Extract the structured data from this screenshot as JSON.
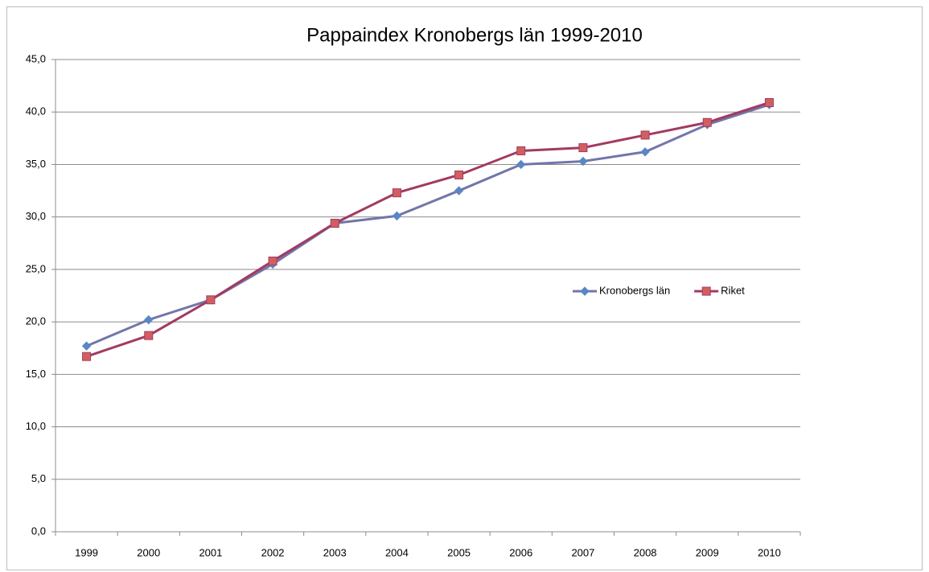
{
  "chart_data": {
    "type": "line",
    "title": "Pappaindex Kronobergs län 1999-2010",
    "categories": [
      "1999",
      "2000",
      "2001",
      "2002",
      "2003",
      "2004",
      "2005",
      "2006",
      "2007",
      "2008",
      "2009",
      "2010"
    ],
    "series": [
      {
        "name": "Kronobergs län",
        "color": "#7276a9",
        "marker_color": "#5b86c6",
        "marker": "diamond",
        "values": [
          17.7,
          20.2,
          22.1,
          25.5,
          29.4,
          30.1,
          32.5,
          35.0,
          35.3,
          36.2,
          38.8,
          40.7
        ]
      },
      {
        "name": "Riket",
        "color": "#a23a62",
        "marker_color": "#d25f5f",
        "marker": "square",
        "values": [
          16.7,
          18.7,
          22.1,
          25.8,
          29.4,
          32.3,
          34.0,
          36.3,
          36.6,
          37.8,
          39.0,
          40.9
        ]
      }
    ],
    "ylim": [
      0,
      45
    ],
    "yticks": [
      {
        "value": 0,
        "label": "0,0"
      },
      {
        "value": 5,
        "label": "5,0"
      },
      {
        "value": 10,
        "label": "10,0"
      },
      {
        "value": 15,
        "label": "15,0"
      },
      {
        "value": 20,
        "label": "20,0"
      },
      {
        "value": 25,
        "label": "25,0"
      },
      {
        "value": 30,
        "label": "30,0"
      },
      {
        "value": 35,
        "label": "35,0"
      },
      {
        "value": 40,
        "label": "40,0"
      },
      {
        "value": 45,
        "label": "45,0"
      }
    ],
    "grid": true,
    "legend": "right"
  }
}
